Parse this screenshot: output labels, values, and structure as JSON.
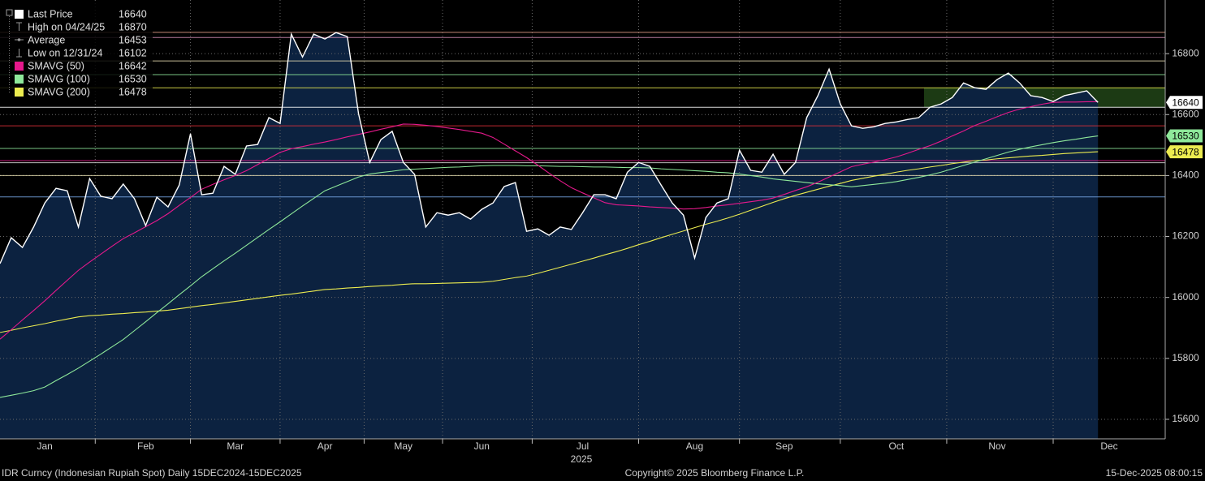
{
  "chart_data": {
    "type": "line",
    "categories": [
      null,
      null,
      null,
      null,
      "Jan",
      null,
      null,
      null,
      null,
      null,
      null,
      null,
      null,
      "Feb",
      null,
      null,
      null,
      null,
      null,
      null,
      null,
      "Mar",
      null,
      null,
      null,
      null,
      null,
      null,
      null,
      "Apr",
      null,
      null,
      null,
      null,
      null,
      null,
      "May",
      null,
      null,
      null,
      null,
      null,
      null,
      "Jun",
      null,
      null,
      null,
      null,
      null,
      null,
      null,
      null,
      "Jul",
      null,
      null,
      null,
      null,
      null,
      null,
      null,
      null,
      null,
      "Aug",
      null,
      null,
      null,
      null,
      null,
      null,
      null,
      "Sep",
      null,
      null,
      null,
      null,
      null,
      null,
      null,
      null,
      null,
      "Oct",
      null,
      null,
      null,
      null,
      null,
      null,
      null,
      null,
      "Nov",
      null,
      null,
      null,
      null,
      null,
      null,
      null,
      null,
      null,
      "Dec",
      null,
      null,
      null,
      null
    ],
    "x_year_label": "2025",
    "series": [
      {
        "name": "Last Price",
        "color": "#ffffff",
        "area_color": "#0c2240",
        "tag": true,
        "values": [
          16111,
          16196,
          16164,
          16231,
          16310,
          16358,
          16350,
          16231,
          16390,
          16332,
          16324,
          16372,
          16324,
          16236,
          16329,
          16297,
          16369,
          16537,
          16337,
          16342,
          16430,
          16404,
          16497,
          16502,
          16590,
          16571,
          16864,
          16789,
          16864,
          16848,
          16869,
          16856,
          16603,
          16443,
          16518,
          16545,
          16443,
          16404,
          16231,
          16278,
          16270,
          16278,
          16257,
          16289,
          16310,
          16364,
          16377,
          16217,
          16225,
          16204,
          16231,
          16223,
          16278,
          16337,
          16337,
          16324,
          16411,
          16443,
          16430,
          16369,
          16310,
          16270,
          16129,
          16262,
          16310,
          16324,
          16483,
          16417,
          16411,
          16470,
          16404,
          16443,
          16590,
          16662,
          16749,
          16635,
          16563,
          16555,
          16560,
          16571,
          16576,
          16584,
          16590,
          16624,
          16635,
          16656,
          16704,
          16688,
          16683,
          16715,
          16736,
          16704,
          16662,
          16656,
          16643,
          16662,
          16670,
          16678,
          16640,
          null,
          null,
          null,
          null,
          null
        ]
      },
      {
        "name": "SMAVG (50)",
        "color": "#e6198c",
        "tag": false,
        "values": [
          15863,
          15894,
          15926,
          15957,
          15989,
          16023,
          16056,
          16089,
          16116,
          16142,
          16168,
          16193,
          16212,
          16232,
          16252,
          16275,
          16302,
          16328,
          16355,
          16371,
          16386,
          16400,
          16416,
          16436,
          16456,
          16476,
          16488,
          16495,
          16503,
          16510,
          16518,
          16527,
          16535,
          16543,
          16552,
          16560,
          16569,
          16568,
          16565,
          16561,
          16556,
          16551,
          16545,
          16539,
          16525,
          16503,
          16481,
          16459,
          16434,
          16408,
          16383,
          16360,
          16343,
          16327,
          16311,
          16304,
          16302,
          16300,
          16297,
          16295,
          16293,
          16290,
          16291,
          16295,
          16300,
          16304,
          16309,
          16314,
          16319,
          16326,
          16338,
          16351,
          16363,
          16378,
          16395,
          16412,
          16429,
          16437,
          16444,
          16452,
          16461,
          16473,
          16486,
          16498,
          16513,
          16530,
          16546,
          16564,
          16578,
          16593,
          16607,
          16618,
          16626,
          16634,
          16640,
          16641,
          16641,
          16642,
          16642,
          null,
          null,
          null,
          null,
          null
        ]
      },
      {
        "name": "SMAVG (100)",
        "color": "#8ee89a",
        "tag": true,
        "values": [
          15672,
          15679,
          15686,
          15694,
          15706,
          15727,
          15747,
          15768,
          15791,
          15814,
          15838,
          15862,
          15891,
          15920,
          15950,
          15979,
          16009,
          16038,
          16068,
          16094,
          16120,
          16145,
          16171,
          16197,
          16223,
          16248,
          16274,
          16300,
          16325,
          16350,
          16365,
          16380,
          16395,
          16405,
          16410,
          16414,
          16419,
          16421,
          16423,
          16425,
          16427,
          16428,
          16430,
          16432,
          16433,
          16433,
          16433,
          16432,
          16432,
          16431,
          16430,
          16430,
          16429,
          16428,
          16428,
          16427,
          16426,
          16426,
          16425,
          16422,
          16420,
          16418,
          16416,
          16414,
          16411,
          16409,
          16405,
          16400,
          16395,
          16389,
          16385,
          16381,
          16377,
          16373,
          16370,
          16367,
          16363,
          16367,
          16371,
          16375,
          16380,
          16387,
          16394,
          16402,
          16411,
          16422,
          16433,
          16444,
          16455,
          16466,
          16477,
          16486,
          16494,
          16501,
          16508,
          16514,
          16519,
          16525,
          16530,
          null,
          null,
          null,
          null,
          null
        ]
      },
      {
        "name": "SMAVG (200)",
        "color": "#ecec50",
        "tag": true,
        "values": [
          15885,
          15892,
          15900,
          15907,
          15914,
          15922,
          15929,
          15936,
          15940,
          15942,
          15945,
          15947,
          15950,
          15952,
          15955,
          15958,
          15963,
          15968,
          15973,
          15977,
          15982,
          15987,
          15992,
          15997,
          16002,
          16007,
          16011,
          16016,
          16021,
          16026,
          16028,
          16031,
          16033,
          16036,
          16038,
          16040,
          16043,
          16045,
          16045,
          16046,
          16047,
          16048,
          16049,
          16050,
          16053,
          16059,
          16065,
          16070,
          16079,
          16089,
          16099,
          16109,
          16119,
          16129,
          16140,
          16150,
          16161,
          16173,
          16184,
          16196,
          16207,
          16218,
          16229,
          16240,
          16250,
          16261,
          16273,
          16286,
          16299,
          16312,
          16324,
          16335,
          16345,
          16355,
          16365,
          16374,
          16384,
          16391,
          16398,
          16404,
          16411,
          16417,
          16422,
          16428,
          16433,
          16439,
          16444,
          16449,
          16451,
          16455,
          16458,
          16461,
          16464,
          16466,
          16469,
          16472,
          16474,
          16476,
          16478,
          null,
          null,
          null,
          null,
          null
        ]
      }
    ],
    "stats": [
      {
        "name": "High on 04/24/25",
        "value": 16870
      },
      {
        "name": "Average",
        "value": 16453
      },
      {
        "name": "Low on 12/31/24",
        "value": 16102
      }
    ],
    "reference_lines": [
      {
        "value": 16870,
        "color": "#e8a08a"
      },
      {
        "value": 16853,
        "color": "#d88fb8"
      },
      {
        "value": 16776,
        "color": "#e6dcb0"
      },
      {
        "value": 16731,
        "color": "#8ee89a"
      },
      {
        "value": 16688,
        "color": "#ecec50"
      },
      {
        "value": 16624,
        "color": "#ffffff"
      },
      {
        "value": 16563,
        "color": "#e0303a"
      },
      {
        "value": 16489,
        "color": "#8ee89a"
      },
      {
        "value": 16449,
        "color": "#e6198c"
      },
      {
        "value": 16442,
        "color": "#dddddd"
      },
      {
        "value": 16400,
        "color": "#e6dcb0"
      },
      {
        "value": 16330,
        "color": "#7aa8e8"
      }
    ],
    "band": {
      "values": [
        16624,
        16688
      ],
      "color": "#1c3a14"
    },
    "ylim": [
      15536,
      16976
    ],
    "yticks": [
      15600,
      15800,
      16000,
      16200,
      16400,
      16600,
      16800
    ],
    "grid": true
  },
  "footer": {
    "left": "IDR Curncy (Indonesian Rupiah Spot) Daily 15DEC2024-15DEC2025",
    "center": "Copyright© 2025 Bloomberg Finance L.P.",
    "right": "15-Dec-2025 08:00:15"
  }
}
